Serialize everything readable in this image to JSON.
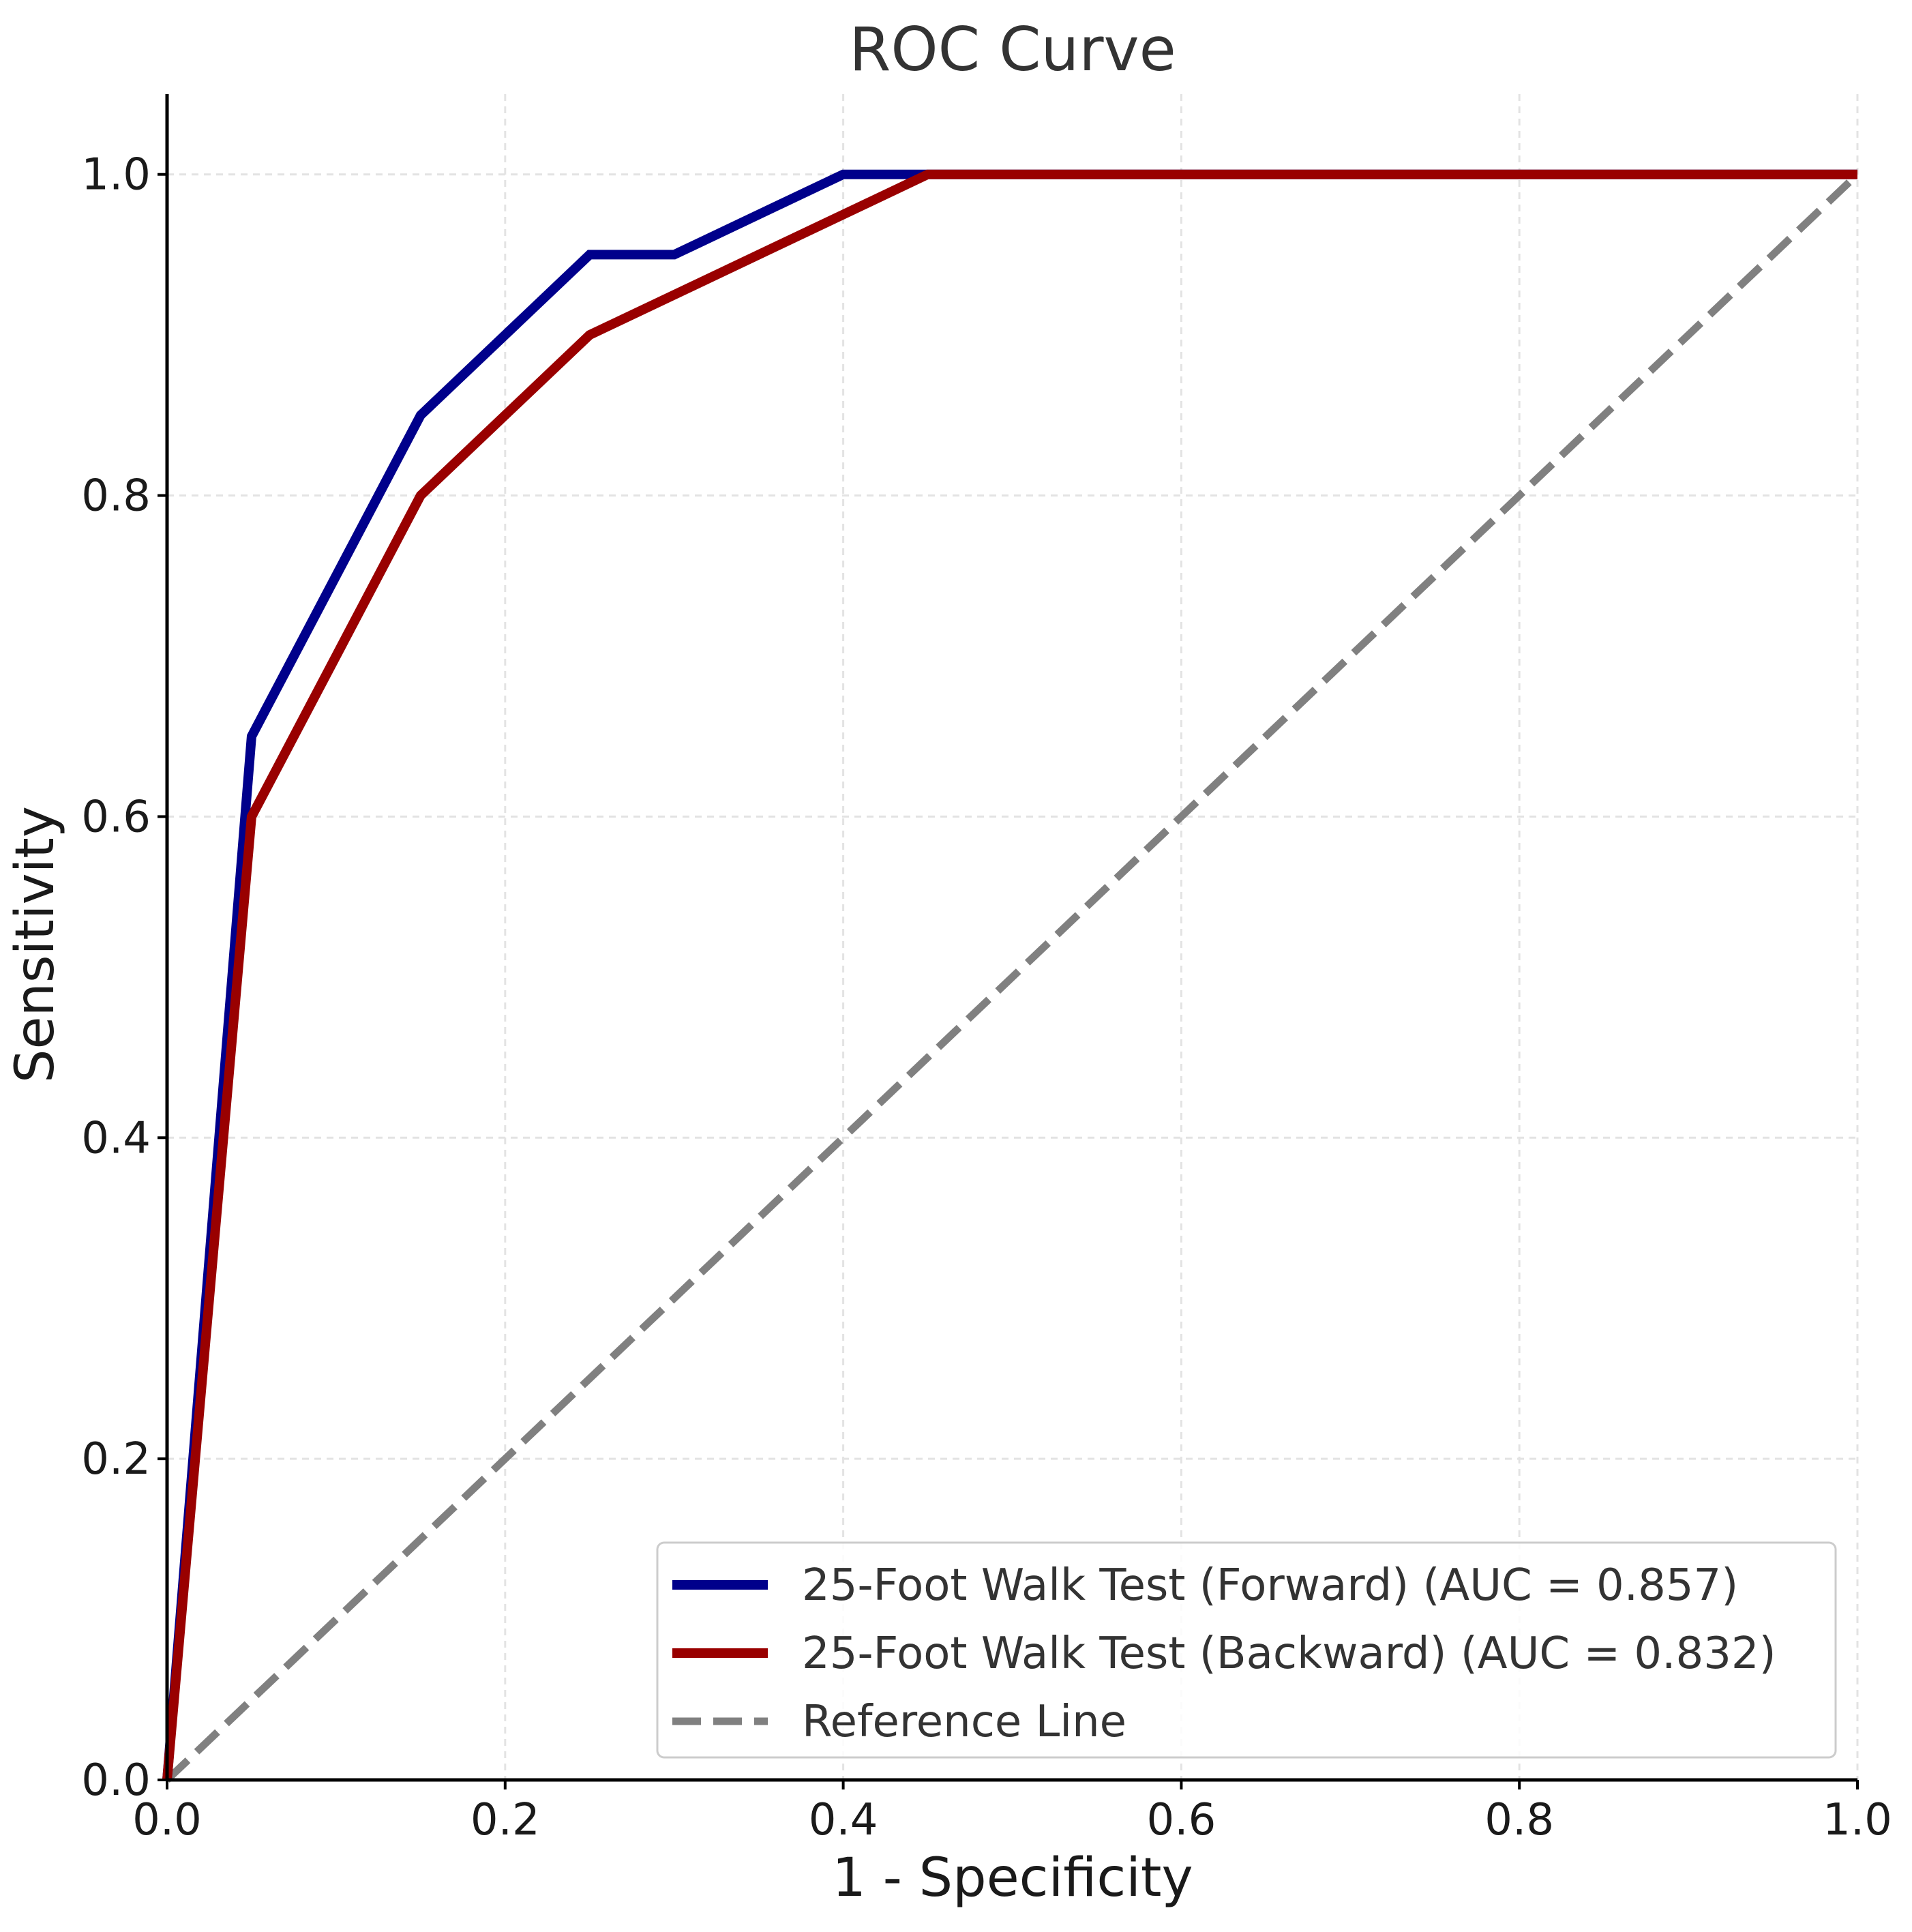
{
  "chart_data": {
    "type": "line",
    "title": "ROC Curve",
    "xlabel": "1 - Specificity",
    "ylabel": "Sensitivity",
    "xlim": [
      0,
      1
    ],
    "ylim": [
      0,
      1.05
    ],
    "xticks": [
      0.0,
      0.2,
      0.4,
      0.6,
      0.8,
      1.0
    ],
    "yticks": [
      0.0,
      0.2,
      0.4,
      0.6,
      0.8,
      1.0
    ],
    "xtick_labels": [
      "0.0",
      "0.2",
      "0.4",
      "0.6",
      "0.8",
      "1.0"
    ],
    "ytick_labels": [
      "0.0",
      "0.2",
      "0.4",
      "0.6",
      "0.8",
      "1.0"
    ],
    "grid": true,
    "legend_position": "lower-right",
    "series": [
      {
        "name": "25-Foot Walk Test (Forward) (AUC = 0.857)",
        "color": "#00008b",
        "style": "solid",
        "x": [
          0.0,
          0.05,
          0.15,
          0.25,
          0.3,
          0.4,
          0.45,
          1.0
        ],
        "y": [
          0.0,
          0.65,
          0.85,
          0.95,
          0.95,
          1.0,
          1.0,
          1.0
        ]
      },
      {
        "name": "25-Foot Walk Test (Backward) (AUC = 0.832)",
        "color": "#990000",
        "style": "solid",
        "x": [
          0.0,
          0.05,
          0.15,
          0.25,
          0.45,
          1.0
        ],
        "y": [
          0.0,
          0.6,
          0.8,
          0.9,
          1.0,
          1.0
        ]
      },
      {
        "name": "Reference Line",
        "color": "#808080",
        "style": "dashed",
        "x": [
          0.0,
          1.0
        ],
        "y": [
          0.0,
          1.0
        ]
      }
    ]
  }
}
